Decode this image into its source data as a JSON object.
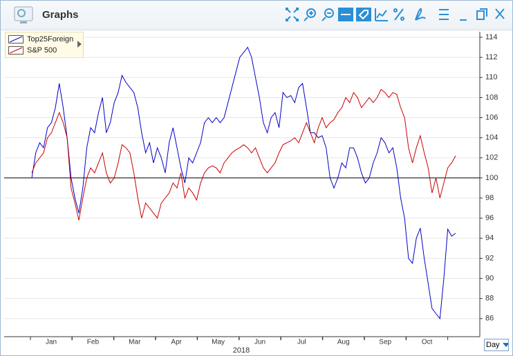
{
  "window_title": "Graphs",
  "period_selector": "Day",
  "chart_data": {
    "type": "line",
    "grid": true,
    "baseline": 100,
    "ylim": [
      84.2,
      114.55
    ],
    "yticks": [
      86,
      88,
      90,
      92,
      94,
      96,
      98,
      100,
      102,
      104,
      106,
      108,
      110,
      112,
      114
    ],
    "months": [
      "Jan",
      "Feb",
      "Mar",
      "Apr",
      "May",
      "Jun",
      "Jul",
      "Aug",
      "Sep",
      "Oct"
    ],
    "xlabel": "2018",
    "legend": "top-left",
    "series": [
      {
        "name": "Top25Foreign",
        "color": "#0000c8",
        "values": [
          100,
          102.5,
          103.5,
          103,
          105,
          105.5,
          107,
          109.4,
          107,
          104,
          100,
          98,
          96.5,
          99,
          103,
          105,
          104.5,
          106.5,
          108,
          104.5,
          105.5,
          107.5,
          108.5,
          110.2,
          109.5,
          109,
          108.5,
          107,
          104.5,
          102.5,
          103.5,
          101.5,
          103,
          102,
          100.5,
          103.5,
          105,
          103,
          101,
          99.5,
          102,
          101.5,
          102.5,
          103.5,
          105.5,
          106,
          105.5,
          106,
          105.5,
          106,
          107.5,
          109,
          110.5,
          112,
          112.5,
          113,
          112,
          110,
          108,
          105.5,
          104.5,
          106,
          106.5,
          105,
          108.5,
          108,
          108.2,
          107.5,
          109,
          109.4,
          107,
          104.5,
          104.5,
          104,
          104.2,
          103,
          100,
          99,
          100,
          101.5,
          101,
          103,
          103,
          102,
          100.5,
          99.5,
          100,
          101.5,
          102.5,
          104,
          103.5,
          102.5,
          103,
          101,
          98,
          96,
          92,
          91.5,
          94,
          95,
          92,
          89.5,
          87,
          86.5,
          86,
          90,
          94.9,
          94.2,
          94.5
        ]
      },
      {
        "name": "S&P 500",
        "color": "#c80000",
        "values": [
          100.5,
          101.5,
          102,
          102.5,
          104,
          104.5,
          105.5,
          106.5,
          105.5,
          104,
          99,
          97.5,
          95.8,
          98,
          100,
          101,
          100.5,
          101.5,
          102.5,
          100.5,
          99.5,
          100,
          101.5,
          103.3,
          103,
          102.5,
          100.5,
          98,
          96,
          97.5,
          97,
          96.5,
          96,
          97.5,
          98,
          98.5,
          99.5,
          99,
          100.5,
          98,
          99,
          98.5,
          97.8,
          99.5,
          100.5,
          101,
          101.2,
          101,
          100.5,
          101.5,
          102,
          102.5,
          102.8,
          103,
          103.3,
          103,
          102.5,
          103,
          102,
          101,
          100.5,
          101,
          101.5,
          102.5,
          103.3,
          103.5,
          103.7,
          104,
          103.5,
          104.5,
          105.5,
          104.5,
          103.5,
          105,
          106,
          105,
          105.5,
          105.8,
          106.5,
          107,
          108,
          107.5,
          108.5,
          108,
          107,
          107.5,
          108,
          107.5,
          108,
          108.8,
          108.5,
          108,
          108.5,
          108.3,
          107,
          106,
          103,
          101.5,
          103,
          104.2,
          102.5,
          101,
          98.5,
          100,
          98,
          99.5,
          101,
          101.5,
          102.2
        ]
      }
    ]
  }
}
